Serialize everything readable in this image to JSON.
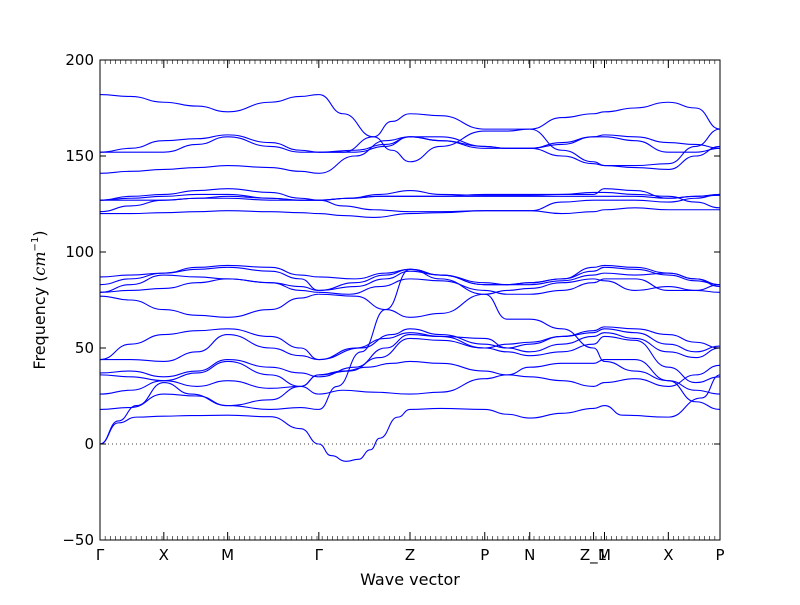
{
  "chart_data": {
    "type": "line",
    "title": "",
    "xlabel": "Wave vector",
    "ylabel": "Frequency (cm⁻¹)",
    "ylabel_prefix": "Frequency (",
    "ylabel_unit": "cm",
    "ylabel_exp": "−1",
    "ylabel_suffix": ")",
    "ylim": [
      -50,
      200
    ],
    "yticks": [
      -50,
      0,
      50,
      100,
      150,
      200
    ],
    "ytick_labels": [
      "−50",
      "0",
      "50",
      "100",
      "150",
      "200"
    ],
    "xlim": [
      0,
      10.2
    ],
    "q_points": [
      {
        "label": "Γ",
        "x": 0
      },
      {
        "label": "X",
        "x": 1.05
      },
      {
        "label": "M",
        "x": 2.1
      },
      {
        "label": "Γ",
        "x": 3.6
      },
      {
        "label": "Z",
        "x": 5.1
      },
      {
        "label": "P",
        "x": 6.33
      },
      {
        "label": "N",
        "x": 7.07
      },
      {
        "label": "Z_1",
        "x": 8.12
      },
      {
        "label": "M",
        "x": 8.3
      },
      {
        "label": "X",
        "x": 9.35
      },
      {
        "label": "P",
        "x": 10.2
      }
    ],
    "zero_line": true,
    "series_color": "#0000ff",
    "series": [
      {
        "x": [
          0,
          0.3,
          0.6,
          1.05,
          1.5,
          2.1,
          2.8,
          3.3,
          3.6
        ],
        "y": [
          0,
          11,
          14,
          14.5,
          14.8,
          15,
          14.2,
          8,
          0
        ]
      },
      {
        "x": [
          3.6,
          3.8,
          4.05,
          4.25,
          4.45,
          4.6,
          4.9,
          5.1,
          5.6,
          6.33,
          6.7,
          7.07,
          7.6,
          8.12,
          8.3,
          8.6,
          9.35,
          9.9,
          10.2
        ],
        "y": [
          0,
          -6,
          -9,
          -8,
          -3,
          3,
          14,
          18,
          18.5,
          18,
          15.5,
          13.5,
          16,
          18.5,
          20,
          15,
          14,
          24,
          36
        ]
      },
      {
        "x": [
          0,
          0.3,
          0.6,
          1.05,
          1.5,
          2.1,
          2.8,
          3.3,
          3.6
        ],
        "y": [
          0,
          12,
          20,
          32,
          26,
          20,
          18,
          19,
          18
        ]
      },
      {
        "x": [
          3.6,
          3.9,
          4.3,
          4.7,
          5.1,
          5.6,
          6.33,
          6.7,
          7.07,
          7.6,
          8.12,
          8.3,
          8.8,
          9.35,
          9.8,
          10.2
        ],
        "y": [
          18,
          30,
          48,
          70,
          91,
          86,
          78,
          65,
          65,
          60,
          50,
          43,
          38,
          33,
          22,
          18
        ]
      },
      {
        "x": [
          0,
          0.5,
          1.05,
          1.6,
          2.1,
          2.8,
          3.3,
          3.6
        ],
        "y": [
          18,
          19,
          26,
          25,
          20,
          23,
          30,
          36
        ]
      },
      {
        "x": [
          3.6,
          4.0,
          4.4,
          4.8,
          5.1,
          5.6,
          6.33,
          6.7,
          7.07,
          7.6,
          8.12,
          8.3,
          8.8,
          9.35,
          9.8,
          10.2
        ],
        "y": [
          36,
          38,
          40,
          42,
          43,
          42,
          38,
          36,
          35,
          33,
          30,
          32,
          34,
          30,
          36,
          41
        ]
      },
      {
        "x": [
          0,
          0.5,
          1.05,
          1.6,
          2.1,
          2.8,
          3.3,
          3.6
        ],
        "y": [
          26,
          28,
          33,
          37,
          43,
          36,
          30,
          26
        ]
      },
      {
        "x": [
          3.6,
          4.0,
          4.5,
          5.1,
          5.6,
          6.33,
          6.7,
          7.07,
          7.6,
          8.12,
          8.3,
          8.8,
          9.35,
          9.8,
          10.2
        ],
        "y": [
          26,
          28,
          27,
          26,
          27,
          34,
          36,
          40,
          42,
          42,
          44,
          44,
          33,
          28,
          26
        ]
      },
      {
        "x": [
          0,
          0.5,
          1.05,
          1.6,
          2.1,
          2.8,
          3.3,
          3.6
        ],
        "y": [
          36,
          35,
          33,
          30,
          33,
          29,
          30,
          36
        ]
      },
      {
        "x": [
          3.6,
          4.1,
          4.6,
          5.1,
          5.6,
          6.33,
          6.7,
          7.07,
          7.6,
          8.12,
          8.3,
          8.8,
          9.35,
          9.8,
          10.2
        ],
        "y": [
          36,
          38,
          45,
          55,
          54,
          50,
          48,
          46,
          48,
          52,
          56,
          54,
          40,
          32,
          35
        ]
      },
      {
        "x": [
          0,
          0.5,
          1.05,
          1.6,
          2.1,
          2.8,
          3.3,
          3.6
        ],
        "y": [
          37,
          38,
          35,
          38,
          44,
          40,
          37,
          35
        ]
      },
      {
        "x": [
          3.6,
          4.2,
          4.7,
          5.1,
          5.6,
          6.33,
          6.7,
          7.07,
          7.6,
          8.12,
          8.3,
          8.8,
          9.35,
          9.8,
          10.2
        ],
        "y": [
          35,
          40,
          50,
          57,
          56,
          55,
          50,
          48,
          52,
          56,
          58,
          55,
          48,
          45,
          50
        ]
      },
      {
        "x": [
          0,
          0.5,
          1.05,
          1.6,
          2.1,
          2.8,
          3.3,
          3.6
        ],
        "y": [
          44,
          44,
          43,
          48,
          57,
          50,
          46,
          44
        ]
      },
      {
        "x": [
          3.6,
          4.2,
          4.7,
          5.1,
          5.6,
          6.33,
          6.7,
          7.07,
          7.6,
          8.12,
          8.3,
          8.8,
          9.35,
          9.8,
          10.2
        ],
        "y": [
          44,
          50,
          55,
          58,
          56,
          50,
          52,
          53,
          56,
          58,
          60,
          58,
          52,
          48,
          51
        ]
      },
      {
        "x": [
          0,
          0.5,
          1.05,
          1.6,
          2.1,
          2.8,
          3.3,
          3.6
        ],
        "y": [
          44,
          52,
          57,
          59,
          60,
          56,
          50,
          44
        ]
      },
      {
        "x": [
          3.6,
          4.3,
          4.8,
          5.1,
          5.6,
          6.33,
          6.7,
          7.07,
          7.6,
          8.12,
          8.3,
          8.8,
          9.35,
          9.8,
          10.2
        ],
        "y": [
          44,
          50,
          57,
          60,
          57,
          52,
          50,
          52,
          56,
          59,
          61,
          60,
          57,
          53,
          50
        ]
      },
      {
        "x": [
          0,
          0.5,
          1.05,
          1.6,
          2.1,
          2.8,
          3.3,
          3.6
        ],
        "y": [
          77,
          75,
          70,
          67,
          66,
          70,
          76,
          78
        ]
      },
      {
        "x": [
          3.6,
          4.2,
          4.7,
          5.1,
          5.6,
          6.33,
          6.7,
          7.07,
          7.6,
          8.12,
          8.3,
          8.8,
          9.35,
          9.8,
          10.2
        ],
        "y": [
          78,
          77,
          70,
          66,
          68,
          78,
          80,
          81,
          84,
          86,
          85,
          80,
          82,
          80,
          79
        ]
      },
      {
        "x": [
          0,
          0.5,
          1.05,
          1.6,
          2.1,
          2.8,
          3.3,
          3.6
        ],
        "y": [
          79,
          80,
          81,
          84,
          86,
          84,
          80,
          79
        ]
      },
      {
        "x": [
          3.6,
          4.1,
          4.6,
          5.1,
          5.6,
          6.33,
          6.7,
          7.07,
          7.6,
          8.12,
          8.3,
          8.8,
          9.35,
          9.8,
          10.2
        ],
        "y": [
          79,
          78,
          82,
          86,
          85,
          80,
          78,
          78,
          80,
          84,
          86,
          86,
          80,
          80,
          83
        ]
      },
      {
        "x": [
          0,
          0.5,
          1.05,
          1.6,
          2.1,
          2.8,
          3.3,
          3.6
        ],
        "y": [
          79,
          83,
          88,
          87,
          86,
          84,
          82,
          80
        ]
      },
      {
        "x": [
          3.6,
          4.2,
          4.7,
          5.1,
          5.6,
          6.33,
          6.7,
          7.07,
          7.6,
          8.12,
          8.3,
          8.8,
          9.35,
          9.8,
          10.2
        ],
        "y": [
          80,
          82,
          86,
          90,
          88,
          84,
          83,
          83,
          85,
          88,
          89,
          88,
          89,
          86,
          82
        ]
      },
      {
        "x": [
          0,
          0.5,
          1.05,
          1.6,
          2.1,
          2.8,
          3.3,
          3.6
        ],
        "y": [
          83,
          86,
          89,
          91,
          92,
          90,
          86,
          80
        ]
      },
      {
        "x": [
          3.6,
          4.2,
          4.7,
          5.1,
          5.6,
          6.33,
          6.7,
          7.07,
          7.6,
          8.12,
          8.3,
          8.8,
          9.35,
          9.8,
          10.2
        ],
        "y": [
          80,
          84,
          88,
          91,
          88,
          83,
          83,
          84,
          86,
          90,
          92,
          91,
          88,
          85,
          83
        ]
      },
      {
        "x": [
          0,
          0.5,
          1.05,
          1.6,
          2.1,
          2.8,
          3.3,
          3.6
        ],
        "y": [
          87,
          88,
          89,
          92,
          93,
          92,
          88,
          87
        ]
      },
      {
        "x": [
          3.6,
          4.2,
          4.7,
          5.1,
          5.6,
          6.33,
          6.7,
          7.07,
          7.6,
          8.12,
          8.3,
          8.8,
          9.35,
          9.8,
          10.2
        ],
        "y": [
          87,
          86,
          89,
          91,
          88,
          83,
          83,
          84,
          86,
          92,
          93,
          92,
          89,
          86,
          83
        ]
      },
      {
        "x": [
          0,
          0.5,
          1.05,
          1.6,
          2.1,
          2.8,
          3.3,
          3.6
        ],
        "y": [
          120,
          120,
          120.5,
          121,
          121.5,
          121,
          120.5,
          120
        ]
      },
      {
        "x": [
          3.6,
          4.0,
          4.5,
          5.1,
          5.6,
          6.33,
          6.7,
          7.07,
          7.6,
          8.12,
          8.3,
          8.8,
          9.35,
          9.8,
          10.2
        ],
        "y": [
          120,
          119,
          118,
          120,
          120.5,
          121.5,
          121.5,
          121.5,
          120,
          121,
          122,
          123,
          122,
          122,
          122
        ]
      },
      {
        "x": [
          0,
          0.5,
          1.05,
          1.6,
          2.1,
          2.8,
          3.3,
          3.6
        ],
        "y": [
          121,
          124,
          127,
          128,
          129,
          128,
          127,
          127
        ]
      },
      {
        "x": [
          3.6,
          4.0,
          4.5,
          5.1,
          5.6,
          6.33,
          6.7,
          7.07,
          7.6,
          8.12,
          8.3,
          8.8,
          9.35,
          9.8,
          10.2
        ],
        "y": [
          127,
          124,
          122,
          121,
          121,
          121.5,
          121.5,
          121.5,
          126,
          127,
          127,
          127,
          126,
          128,
          130
        ]
      },
      {
        "x": [
          0,
          0.5,
          1.05,
          1.6,
          2.1,
          2.8,
          3.3,
          3.6
        ],
        "y": [
          127,
          127,
          127,
          128,
          128,
          127,
          127,
          127
        ]
      },
      {
        "x": [
          3.6,
          4.1,
          4.6,
          5.1,
          5.6,
          6.33,
          6.7,
          7.07,
          7.6,
          8.12,
          8.3,
          8.8,
          9.35,
          9.8,
          10.2
        ],
        "y": [
          127,
          128,
          129,
          129,
          129,
          129,
          129,
          129,
          129,
          129,
          129,
          129,
          128,
          129,
          129.5
        ]
      },
      {
        "x": [
          0,
          0.5,
          1.05,
          1.6,
          2.1,
          2.8,
          3.3,
          3.6
        ],
        "y": [
          127,
          128,
          129,
          130,
          130,
          128,
          127,
          127
        ]
      },
      {
        "x": [
          3.6,
          4.1,
          4.6,
          5.1,
          5.6,
          6.33,
          6.7,
          7.07,
          7.6,
          8.12,
          8.3,
          8.8,
          9.35,
          9.8,
          10.2
        ],
        "y": [
          127,
          128,
          130,
          132,
          130,
          129.5,
          129.5,
          129.5,
          130,
          130,
          133,
          132,
          128,
          129,
          130
        ]
      },
      {
        "x": [
          0,
          0.5,
          1.05,
          1.6,
          2.1,
          2.8,
          3.3,
          3.6
        ],
        "y": [
          127,
          129,
          130,
          132,
          133,
          131,
          128,
          127
        ]
      },
      {
        "x": [
          3.6,
          4.1,
          4.6,
          5.1,
          5.6,
          6.33,
          6.7,
          7.07,
          7.6,
          8.12,
          8.3,
          8.8,
          9.35,
          9.8,
          10.2
        ],
        "y": [
          127,
          128,
          129,
          129,
          129,
          130,
          130,
          130,
          130,
          131,
          131,
          130,
          129,
          126,
          123
        ]
      },
      {
        "x": [
          0,
          0.5,
          1.05,
          1.6,
          2.1,
          2.8,
          3.3,
          3.6
        ],
        "y": [
          141,
          142,
          143,
          144,
          145,
          144,
          142,
          141
        ]
      },
      {
        "x": [
          3.6,
          4.2,
          4.7,
          5.1,
          5.6,
          6.33,
          6.7,
          7.07,
          7.6,
          8.12,
          8.3,
          8.8,
          9.35,
          9.8,
          10.2
        ],
        "y": [
          141,
          150,
          158,
          160,
          158,
          154,
          154,
          154,
          150,
          146,
          145,
          144,
          143,
          150,
          155
        ]
      },
      {
        "x": [
          0,
          0.5,
          1.05,
          1.6,
          2.1,
          2.8,
          3.3,
          3.6
        ],
        "y": [
          152,
          152,
          152,
          156,
          160,
          155,
          152,
          152
        ]
      },
      {
        "x": [
          3.6,
          4.2,
          4.7,
          5.1,
          5.6,
          6.33,
          6.7,
          7.07,
          7.6,
          8.12,
          8.3,
          8.8,
          9.35,
          9.8,
          10.2
        ],
        "y": [
          152,
          153,
          156,
          160,
          158,
          155,
          154,
          154,
          157,
          160,
          160,
          158,
          152,
          152,
          154
        ]
      },
      {
        "x": [
          0,
          0.5,
          1.05,
          1.6,
          2.1,
          2.8,
          3.3,
          3.6
        ],
        "y": [
          152,
          154,
          158,
          159,
          161,
          157,
          153,
          152
        ]
      },
      {
        "x": [
          3.6,
          4.2,
          4.7,
          5.1,
          5.6,
          6.33,
          6.7,
          7.07,
          7.6,
          8.12,
          8.3,
          8.8,
          9.35,
          9.8,
          10.2
        ],
        "y": [
          152,
          152,
          155,
          160,
          160,
          155,
          154,
          154,
          156,
          160,
          161,
          160,
          157,
          156,
          154
        ]
      },
      {
        "x": [
          0,
          0.5,
          1.05,
          1.6,
          2.1,
          2.8,
          3.3,
          3.6
        ],
        "y": [
          182,
          181,
          178,
          176,
          173,
          178,
          181,
          182
        ]
      },
      {
        "x": [
          3.6,
          4.0,
          4.5,
          4.8,
          5.1,
          5.6,
          6.33,
          6.7,
          7.07,
          7.6,
          8.12,
          8.3,
          8.8,
          9.35,
          9.8,
          10.2
        ],
        "y": [
          182,
          172,
          160,
          153,
          147,
          155,
          163,
          163,
          164,
          153,
          147,
          145,
          145,
          146,
          155,
          164
        ]
      },
      {
        "x": [
          3.6,
          4.0,
          4.5,
          4.8,
          5.1,
          5.6,
          6.33,
          6.7,
          7.07,
          7.6,
          8.12,
          8.3,
          8.8,
          9.35,
          9.8,
          10.2
        ],
        "y": [
          152,
          152,
          160,
          168,
          172,
          171,
          164,
          164,
          164,
          170,
          172,
          173,
          175,
          178,
          175,
          164
        ]
      }
    ]
  }
}
